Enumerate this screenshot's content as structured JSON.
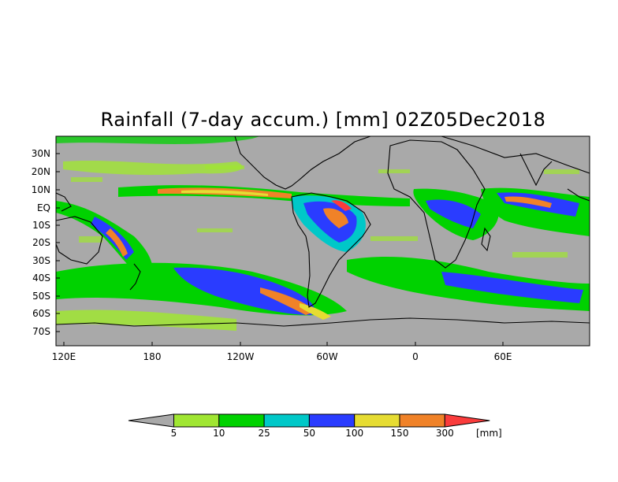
{
  "title": "Rainfall (7-day accum.) [mm] 02Z05Dec2018",
  "map": {
    "background_color": "#a9a9a9",
    "lat_ticks": [
      "30N",
      "20N",
      "10N",
      "EQ",
      "10S",
      "20S",
      "30S",
      "40S",
      "50S",
      "60S",
      "70S"
    ],
    "lon_ticks": [
      "120E",
      "180",
      "120W",
      "60W",
      "0",
      "60E"
    ]
  },
  "colorbar": {
    "unit_label": "[mm]",
    "bins": [
      {
        "color": "#a9a9a9"
      },
      {
        "color": "#a0e632"
      },
      {
        "color": "#00d200"
      },
      {
        "color": "#00c8c8"
      },
      {
        "color": "#2a3cff"
      },
      {
        "color": "#e6dc32"
      },
      {
        "color": "#f08228"
      },
      {
        "color": "#fa3c3c"
      }
    ],
    "thresholds": [
      "5",
      "10",
      "25",
      "50",
      "100",
      "150",
      "300"
    ]
  }
}
